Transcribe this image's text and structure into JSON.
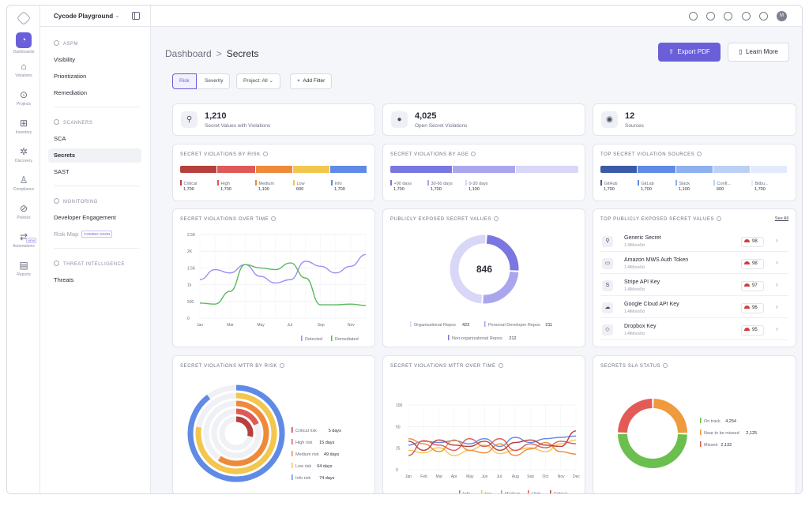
{
  "app": {
    "workspace": "Cycode Playground"
  },
  "rail": [
    {
      "label": "Dashboards",
      "icon": "dashboard-icon",
      "glyph": "◔"
    },
    {
      "label": "Violations",
      "icon": "violations-icon",
      "glyph": "⌂"
    },
    {
      "label": "Projects",
      "icon": "projects-icon",
      "glyph": "⊙"
    },
    {
      "label": "Inventory",
      "icon": "inventory-icon",
      "glyph": "⊞"
    },
    {
      "label": "Discovery",
      "icon": "discovery-icon",
      "glyph": "✲"
    },
    {
      "label": "Compliance",
      "icon": "compliance-icon",
      "glyph": "♙"
    },
    {
      "label": "Policies",
      "icon": "policies-icon",
      "glyph": "⊘"
    },
    {
      "label": "Automations",
      "icon": "automations-icon",
      "glyph": "⇄",
      "badge": "NEW"
    },
    {
      "label": "Reports",
      "icon": "reports-icon",
      "glyph": "▤"
    }
  ],
  "nav": {
    "aspm": {
      "heading": "ASPM",
      "items": [
        "Visibility",
        "Prioritization",
        "Remediation"
      ]
    },
    "scanners": {
      "heading": "SCANNERS",
      "items": [
        "SCA",
        "Secrets",
        "SAST"
      ]
    },
    "monitoring": {
      "heading": "MONITORING",
      "items": [
        "Developer Engagement",
        "Risk Map"
      ],
      "soon_label": "COMING SOON"
    },
    "threat": {
      "heading": "THREAT INTELLIGENCE",
      "items": [
        "Threats"
      ]
    }
  },
  "header": {
    "crumb_root": "Dashboard",
    "crumb_sep": ">",
    "crumb_current": "Secrets",
    "export_label": "Export PDF",
    "learn_label": "Learn More"
  },
  "filters": {
    "risk": "Risk",
    "severity": "Severity",
    "project": "Project: All",
    "add": "Add Filter"
  },
  "stats": [
    {
      "value": "1,210",
      "label": "Secret Values with Violations"
    },
    {
      "value": "4,025",
      "label": "Open Secret Violations"
    },
    {
      "value": "12",
      "label": "Sources"
    }
  ],
  "risk_card": {
    "title": "SECRET VIOLATIONS BY RISK",
    "items": [
      {
        "name": "Critical",
        "value": "1,700",
        "color": "#b5403d"
      },
      {
        "name": "High",
        "value": "1,700",
        "color": "#df5a57"
      },
      {
        "name": "Medium",
        "value": "1,100",
        "color": "#ee8a3a"
      },
      {
        "name": "Low",
        "value": "600",
        "color": "#f3c64e"
      },
      {
        "name": "Info",
        "value": "1,700",
        "color": "#5f8ae6"
      }
    ]
  },
  "age_card": {
    "title": "SECRET VIOLATIONS BY AGE",
    "items": [
      {
        "name": "+90 days",
        "value": "1,700",
        "color": "#7b77e0"
      },
      {
        "name": "30-60 days",
        "value": "1,700",
        "color": "#a9a6ee"
      },
      {
        "name": "0-30 days",
        "value": "1,100",
        "color": "#d8d7f7"
      }
    ]
  },
  "sources_card": {
    "title": "TOP SECRET VIOLATION SOURCES",
    "items": [
      {
        "name": "GitHub",
        "value": "1,700",
        "color": "#3b5aa8"
      },
      {
        "name": "GitLab",
        "value": "1,700",
        "color": "#5f8ae6"
      },
      {
        "name": "Slack",
        "value": "1,100",
        "color": "#8fb0ee"
      },
      {
        "name": "Confl...",
        "value": "600",
        "color": "#bcd0f5"
      },
      {
        "name": "Bitbu...",
        "value": "1,700",
        "color": "#e2ebfb"
      }
    ]
  },
  "time_card": {
    "title": "SECRET VIOLATIONS OVER TIME"
  },
  "exposed_card": {
    "title": "PUBLICLY EXPOSED SECRET VALUES",
    "total": "846"
  },
  "top_card": {
    "title": "TOP PUBLICLY EXPOSED SECRET VALUES",
    "see_all": "See All",
    "rows": [
      {
        "title": "Generic Secret",
        "sub": "1.4lMovs0ci",
        "score": "98",
        "glyph": "⚲"
      },
      {
        "title": "Amazon MWS Auth Token",
        "sub": "1.4lMovs0ci",
        "score": "98",
        "glyph": "▭"
      },
      {
        "title": "Stripe API Key",
        "sub": "1.4lMovs0ci",
        "score": "97",
        "glyph": "S"
      },
      {
        "title": "Google Cloud API Key",
        "sub": "1.4lMovs0ci",
        "score": "96",
        "glyph": "☁"
      },
      {
        "title": "Dropbox Key",
        "sub": "1.4lMovs0ci",
        "score": "95",
        "glyph": "◇"
      }
    ]
  },
  "mttr_risk_card": {
    "title": "SECRET VIOLATIONS MTTR BY RISK"
  },
  "mttr_time_card": {
    "title": "SECRET VIOLATIONS MTTR OVER TIME"
  },
  "sla_card": {
    "title": "SECRETS SLA STATUS"
  },
  "chart_data": [
    {
      "type": "line",
      "title": "SECRET VIOLATIONS OVER TIME",
      "x": [
        "Jan",
        "Feb",
        "Mar",
        "Apr",
        "May",
        "Jun",
        "Jul",
        "Aug",
        "Sep",
        "Oct",
        "Nov",
        "Dec"
      ],
      "x_tick_labels": [
        "Jan",
        "Mar",
        "May",
        "Jul",
        "Sep",
        "Nov"
      ],
      "y_tick_labels": [
        "0",
        "500",
        "1k",
        "1.5K",
        "2K",
        "2.5K"
      ],
      "ylim": [
        0,
        2500
      ],
      "series": [
        {
          "name": "Detected",
          "color": "#9a90ef",
          "values": [
            1150,
            1450,
            1350,
            1600,
            1250,
            1050,
            1150,
            1700,
            1550,
            1350,
            1550,
            1900
          ]
        },
        {
          "name": "Remediated",
          "color": "#5cb85c",
          "values": [
            450,
            420,
            800,
            1600,
            1500,
            1450,
            1650,
            1200,
            400,
            400,
            420,
            380
          ]
        }
      ]
    },
    {
      "type": "pie",
      "title": "PUBLICLY EXPOSED SECRET VALUES",
      "center_label": "846",
      "slices": [
        {
          "name": "Organizational Repos",
          "value": 423,
          "color": "#d8d7f7"
        },
        {
          "name": "Personal Developer Repos",
          "value": 211,
          "color": "#a9a6ee"
        },
        {
          "name": "Non-organizational Repos",
          "value": 212,
          "color": "#7b77e0"
        }
      ]
    },
    {
      "type": "pie",
      "title": "SECRET VIOLATIONS MTTR BY RISK",
      "slices": [
        {
          "name": "Critical risk",
          "value": 5,
          "unit": "days",
          "color": "#b5403d"
        },
        {
          "name": "High risk",
          "value": 15,
          "unit": "days",
          "color": "#df5a57"
        },
        {
          "name": "Medium risk",
          "value": 49,
          "unit": "days",
          "color": "#ee8a3a"
        },
        {
          "name": "Low risk",
          "value": 64,
          "unit": "days",
          "color": "#f3c64e"
        },
        {
          "name": "Info risk",
          "value": 74,
          "unit": "days",
          "color": "#5f8ae6"
        }
      ]
    },
    {
      "type": "line",
      "title": "SECRET VIOLATIONS MTTR OVER TIME",
      "x": [
        "Jan",
        "Feb",
        "Mar",
        "Apr",
        "May",
        "Jun",
        "Jul",
        "Aug",
        "Sep",
        "Oct",
        "Nov",
        "Dec"
      ],
      "x_tick_labels": [
        "Jan",
        "Feb",
        "Mar",
        "Apr",
        "May",
        "Jun",
        "Jul",
        "Aug",
        "Sep",
        "Oct",
        "Nov",
        "Dec"
      ],
      "y_tick_labels": [
        "0",
        "25",
        "50",
        "100"
      ],
      "ylim": [
        0,
        100
      ],
      "series": [
        {
          "name": "Info",
          "color": "#5f8ae6",
          "values": [
            38,
            44,
            42,
            45,
            40,
            48,
            36,
            50,
            42,
            48,
            50,
            52
          ]
        },
        {
          "name": "low",
          "color": "#f3c64e",
          "values": [
            30,
            26,
            34,
            22,
            30,
            38,
            25,
            30,
            34,
            28,
            40,
            46
          ]
        },
        {
          "name": "Medium",
          "color": "#ee8a3a",
          "values": [
            48,
            40,
            28,
            46,
            30,
            26,
            40,
            22,
            32,
            42,
            28,
            24
          ]
        },
        {
          "name": "High",
          "color": "#df5a57",
          "values": [
            22,
            45,
            38,
            30,
            48,
            36,
            48,
            30,
            40,
            34,
            44,
            40
          ]
        },
        {
          "name": "Critical",
          "color": "#b5403d",
          "values": [
            44,
            30,
            46,
            38,
            36,
            44,
            30,
            42,
            46,
            38,
            36,
            60
          ]
        }
      ]
    },
    {
      "type": "pie",
      "title": "SECRETS SLA STATUS",
      "slices": [
        {
          "name": "On track",
          "value": 4254,
          "display": "4,254",
          "color": "#6bbf4e"
        },
        {
          "name": "Near to be missed",
          "value": 2125,
          "display": "2,125",
          "color": "#ef9a3c"
        },
        {
          "name": "Missed",
          "value": 2132,
          "display": "2,132",
          "color": "#e35b57"
        }
      ]
    }
  ]
}
